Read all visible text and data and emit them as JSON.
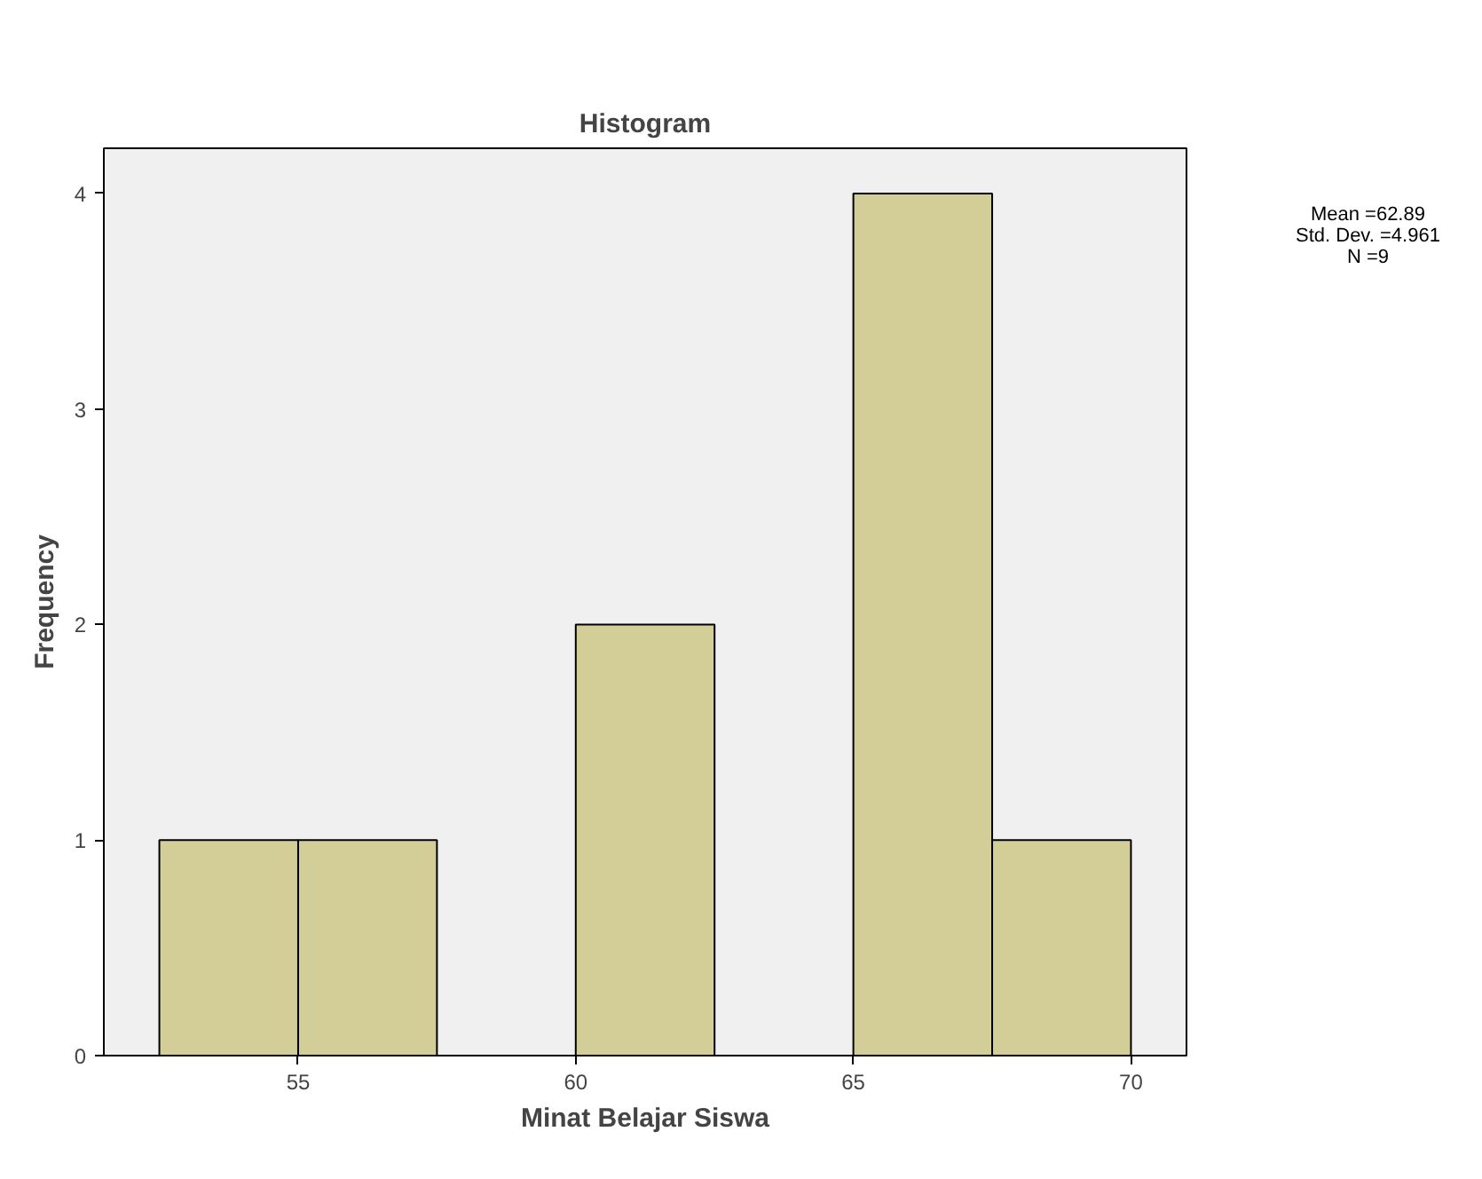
{
  "chart_data": {
    "type": "histogram",
    "title": "Histogram",
    "xlabel": "Minat Belajar Siswa",
    "ylabel": "Frequency",
    "bins": [
      52.5,
      55,
      57.5,
      60,
      62.5,
      65,
      67.5,
      70
    ],
    "values": [
      1,
      1,
      0,
      2,
      0,
      4,
      1
    ],
    "color": "#d3ce98",
    "xlim": [
      51.5,
      71
    ],
    "xticks": [
      55,
      60,
      65,
      70
    ],
    "ylim": [
      0,
      4.21
    ],
    "yticks": [
      0,
      1,
      2,
      3,
      4
    ],
    "grid": false,
    "annotations": [
      "Mean =62.89",
      "Std. Dev. =4.961",
      "N =9"
    ]
  }
}
